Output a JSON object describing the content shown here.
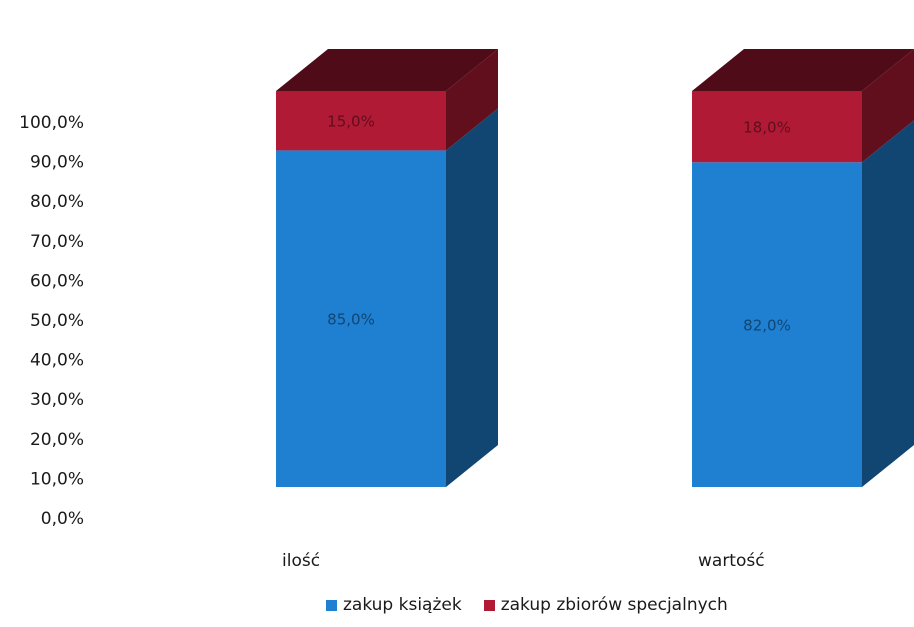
{
  "chart_data": {
    "type": "bar",
    "stacked": true,
    "three_d": true,
    "categories": [
      "ilość",
      "wartość"
    ],
    "series": [
      {
        "name": "zakup książek",
        "values": [
          85.0,
          82.0
        ],
        "labels": [
          "85,0%",
          "82,0%"
        ],
        "color": "#1f7fd1"
      },
      {
        "name": "zakup zbiorów specjalnych",
        "values": [
          15.0,
          18.0
        ],
        "labels": [
          "15,0%",
          "18,0%"
        ],
        "color": "#b01a35"
      }
    ],
    "y_ticks": [
      "0,0%",
      "10,0%",
      "20,0%",
      "30,0%",
      "40,0%",
      "50,0%",
      "60,0%",
      "70,0%",
      "80,0%",
      "90,0%",
      "100,0%"
    ],
    "ylim": [
      0,
      100
    ],
    "legend_position": "bottom"
  }
}
